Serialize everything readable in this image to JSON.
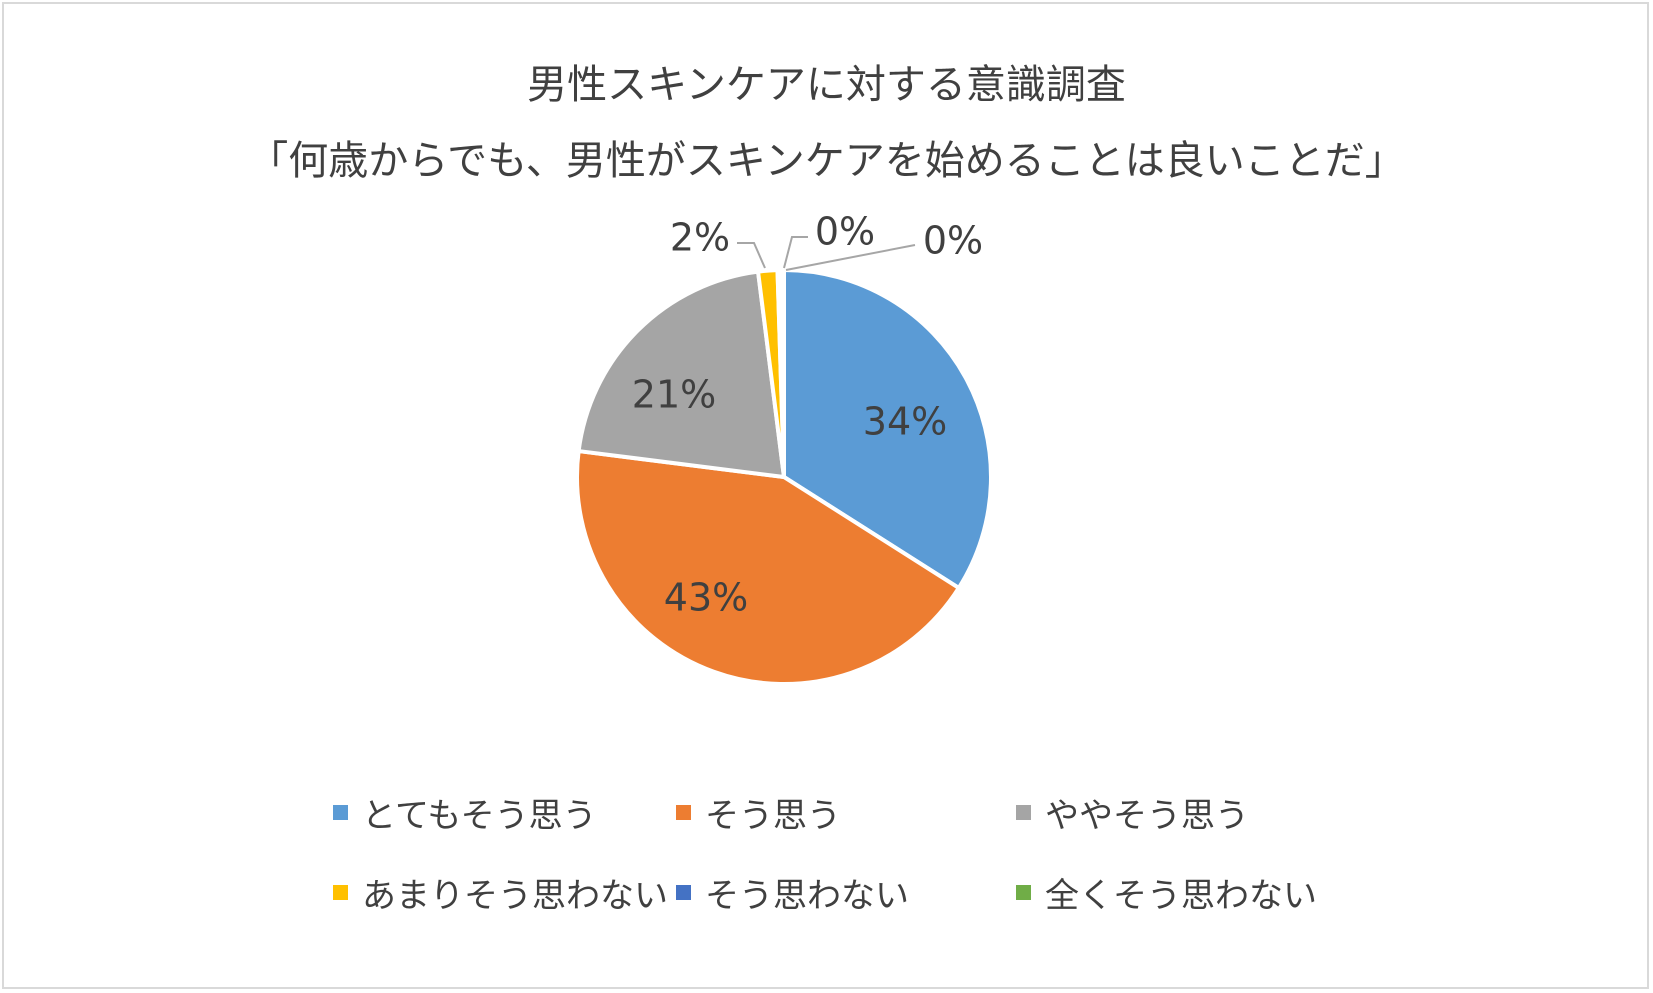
{
  "chart_data": {
    "type": "pie",
    "title": "男性スキンケアに対する意識調査",
    "subtitle": "「何歳からでも、男性がスキンケアを始めることは良いことだ」",
    "legend_position": "bottom",
    "slices": [
      {
        "label": "とてもそう思う",
        "value": 34,
        "display": "34%",
        "color": "#5b9bd5"
      },
      {
        "label": "そう思う",
        "value": 43,
        "display": "43%",
        "color": "#ed7d31"
      },
      {
        "label": "ややそう思う",
        "value": 21,
        "display": "21%",
        "color": "#a5a5a5"
      },
      {
        "label": "あまりそう思わない",
        "value": 1.5,
        "display": "2%",
        "color": "#ffc000"
      },
      {
        "label": "そう思わない",
        "value": 0.3,
        "display": "0%",
        "color": "#4472c4"
      },
      {
        "label": "全くそう思わない",
        "value": 0.2,
        "display": "0%",
        "color": "#70ad47"
      }
    ]
  }
}
